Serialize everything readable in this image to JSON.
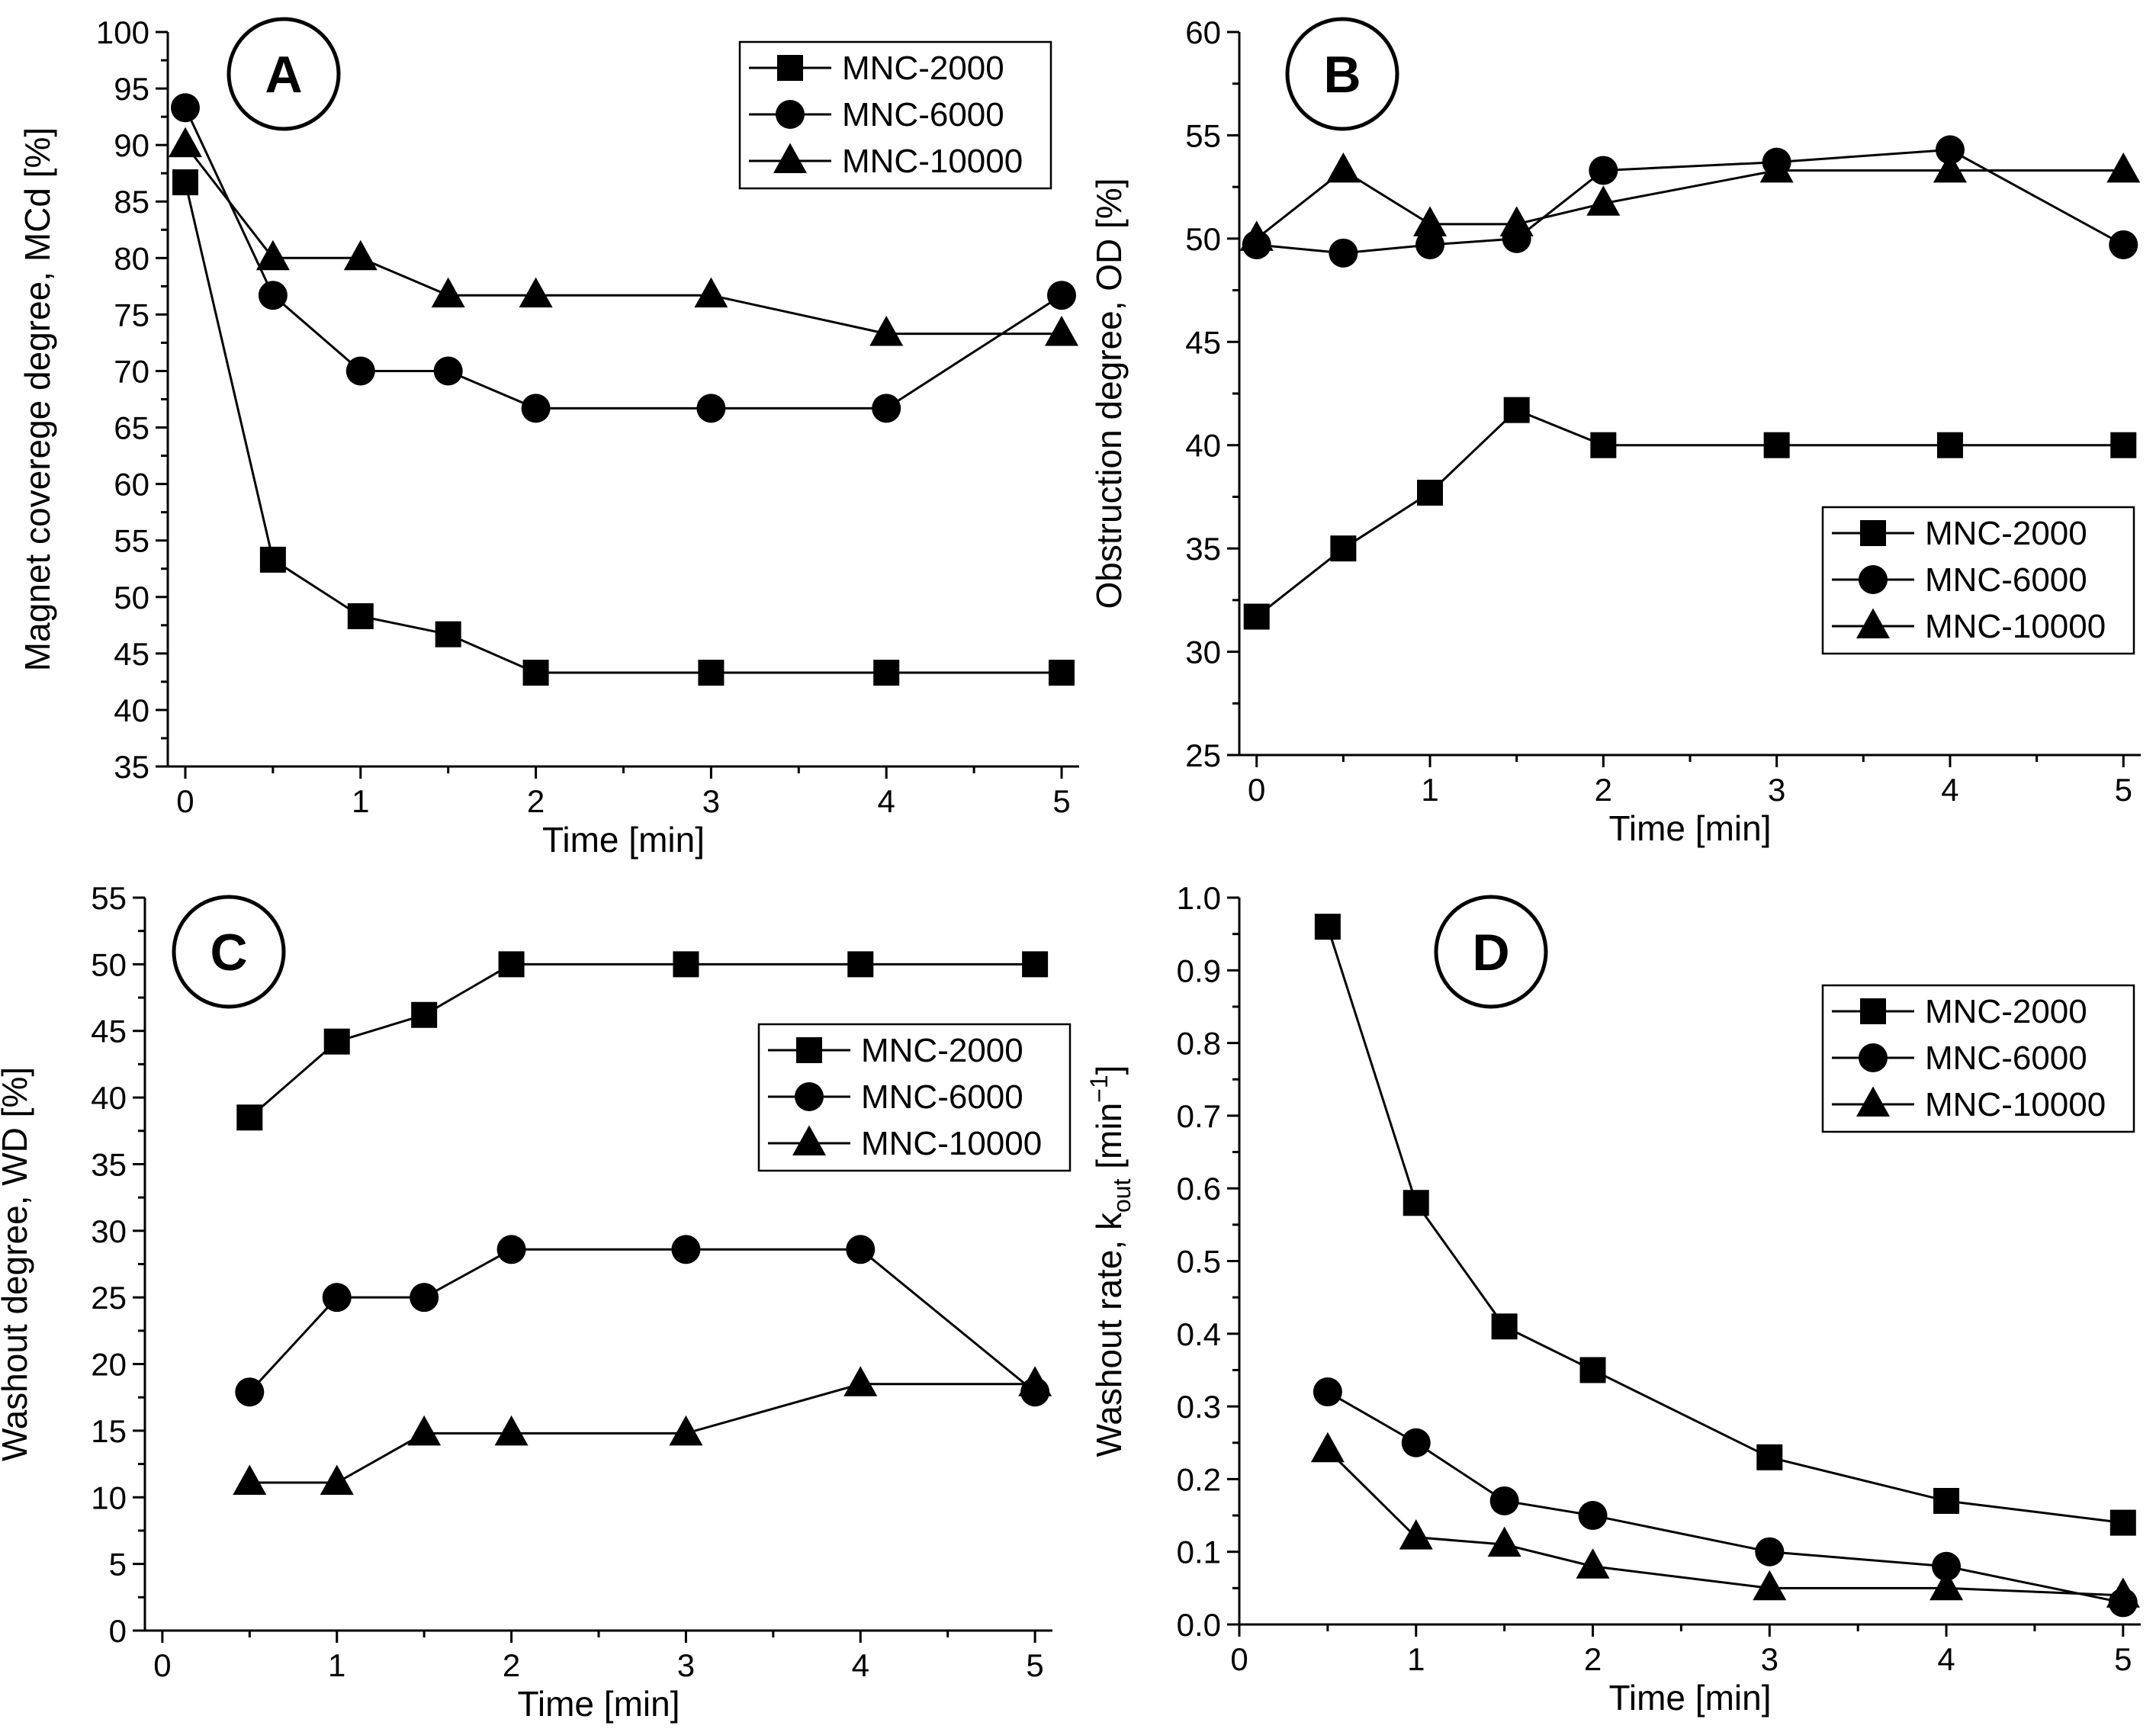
{
  "chart_data": [
    {
      "type": "line",
      "panel_label": "A",
      "xlabel": "Time [min]",
      "ylabel": "Magnet coverege degree, MCd [%]",
      "xlim": [
        -0.1,
        5.1
      ],
      "ylim": [
        35,
        100
      ],
      "xticks": [
        0,
        1,
        2,
        3,
        4,
        5
      ],
      "yticks": [
        35,
        40,
        45,
        50,
        55,
        60,
        65,
        70,
        75,
        80,
        85,
        90,
        95,
        100
      ],
      "legend_position": "top-right",
      "grid": false,
      "series": [
        {
          "name": "MNC-2000",
          "marker": "square",
          "x": [
            0,
            0.5,
            1,
            1.5,
            2,
            3,
            4,
            5
          ],
          "y": [
            86.7,
            53.3,
            48.3,
            46.7,
            43.3,
            43.3,
            43.3,
            43.3
          ]
        },
        {
          "name": "MNC-6000",
          "marker": "circle",
          "x": [
            0,
            0.5,
            1,
            1.5,
            2,
            3,
            4,
            5
          ],
          "y": [
            93.3,
            76.7,
            70.0,
            70.0,
            66.7,
            66.7,
            66.7,
            76.7
          ]
        },
        {
          "name": "MNC-10000",
          "marker": "triangle",
          "x": [
            0,
            0.5,
            1,
            1.5,
            2,
            3,
            4,
            5
          ],
          "y": [
            90.0,
            80.0,
            80.0,
            76.7,
            76.7,
            76.7,
            73.3,
            73.3
          ]
        }
      ]
    },
    {
      "type": "line",
      "panel_label": "B",
      "xlabel": "Time [min]",
      "ylabel": "Obstruction degree, OD [%]",
      "xlim": [
        -0.1,
        5.1
      ],
      "ylim": [
        25,
        60
      ],
      "xticks": [
        0,
        1,
        2,
        3,
        4,
        5
      ],
      "yticks": [
        25,
        30,
        35,
        40,
        45,
        50,
        55,
        60
      ],
      "legend_position": "center-right",
      "grid": false,
      "series": [
        {
          "name": "MNC-2000",
          "marker": "square",
          "x": [
            0,
            0.5,
            1,
            1.5,
            2,
            3,
            4,
            5
          ],
          "y": [
            31.7,
            35.0,
            37.7,
            41.7,
            40.0,
            40.0,
            40.0,
            40.0
          ]
        },
        {
          "name": "MNC-6000",
          "marker": "circle",
          "x": [
            0,
            0.5,
            1,
            1.5,
            2,
            3,
            4,
            5
          ],
          "y": [
            49.7,
            49.3,
            49.7,
            50.0,
            53.3,
            53.7,
            54.3,
            49.7
          ]
        },
        {
          "name": "MNC-10000",
          "marker": "triangle",
          "x": [
            0,
            0.5,
            1,
            1.5,
            2,
            3,
            4,
            5
          ],
          "y": [
            50.0,
            53.3,
            50.7,
            50.7,
            51.7,
            53.3,
            53.3,
            53.3
          ]
        }
      ]
    },
    {
      "type": "line",
      "panel_label": "C",
      "xlabel": "Time [min]",
      "ylabel": "Washout degree, WD [%]",
      "xlim": [
        -0.1,
        5.1
      ],
      "ylim": [
        0,
        55
      ],
      "xticks": [
        0,
        1,
        2,
        3,
        4,
        5
      ],
      "yticks": [
        0,
        5,
        10,
        15,
        20,
        25,
        30,
        35,
        40,
        45,
        50,
        55
      ],
      "legend_position": "upper-right",
      "grid": false,
      "series": [
        {
          "name": "MNC-2000",
          "marker": "square",
          "x": [
            0.5,
            1,
            1.5,
            2,
            3,
            4,
            5
          ],
          "y": [
            38.5,
            44.2,
            46.2,
            50.0,
            50.0,
            50.0,
            50.0
          ]
        },
        {
          "name": "MNC-6000",
          "marker": "circle",
          "x": [
            0.5,
            1,
            1.5,
            2,
            3,
            4,
            5
          ],
          "y": [
            17.9,
            25.0,
            25.0,
            28.6,
            28.6,
            28.6,
            17.9
          ]
        },
        {
          "name": "MNC-10000",
          "marker": "triangle",
          "x": [
            0.5,
            1,
            1.5,
            2,
            3,
            4,
            5
          ],
          "y": [
            11.1,
            11.1,
            14.8,
            14.8,
            14.8,
            18.5,
            18.5
          ]
        }
      ]
    },
    {
      "type": "line",
      "panel_label": "D",
      "xlabel": "Time [min]",
      "ylabel": "Washout rate, k",
      "ylabel_subscript": "out",
      "ylabel_unit": " [min",
      "ylabel_superscript": "−1",
      "ylabel_close": "]",
      "xlim": [
        0,
        5.1
      ],
      "ylim": [
        0,
        1.0
      ],
      "xticks": [
        0,
        1,
        2,
        3,
        4,
        5
      ],
      "yticks": [
        0.0,
        0.1,
        0.2,
        0.3,
        0.4,
        0.5,
        0.6,
        0.7,
        0.8,
        0.9,
        1.0
      ],
      "ytick_labels": [
        "0.0",
        "0.1",
        "0.2",
        "0.3",
        "0.4",
        "0.5",
        "0.6",
        "0.7",
        "0.8",
        "0.9",
        "1.0"
      ],
      "legend_position": "upper-right",
      "grid": false,
      "series": [
        {
          "name": "MNC-2000",
          "marker": "square",
          "x": [
            0.5,
            1,
            1.5,
            2,
            3,
            4,
            5
          ],
          "y": [
            0.96,
            0.58,
            0.41,
            0.35,
            0.23,
            0.17,
            0.14
          ]
        },
        {
          "name": "MNC-6000",
          "marker": "circle",
          "x": [
            0.5,
            1,
            1.5,
            2,
            3,
            4,
            5
          ],
          "y": [
            0.32,
            0.25,
            0.17,
            0.15,
            0.1,
            0.08,
            0.03
          ]
        },
        {
          "name": "MNC-10000",
          "marker": "triangle",
          "x": [
            0.5,
            1,
            1.5,
            2,
            3,
            4,
            5
          ],
          "y": [
            0.24,
            0.12,
            0.11,
            0.08,
            0.05,
            0.05,
            0.04
          ]
        }
      ]
    }
  ]
}
